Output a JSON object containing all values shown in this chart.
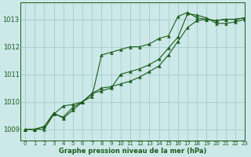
{
  "title": "Graphe pression niveau de la mer (hPa)",
  "bg_color": "#cce8e8",
  "line_color": "#1a5c1a",
  "grid_color": "#9cc8c8",
  "xlim": [
    -0.5,
    23
  ],
  "ylim": [
    1008.6,
    1013.6
  ],
  "yticks": [
    1009,
    1010,
    1011,
    1012,
    1013
  ],
  "xticks": [
    0,
    1,
    2,
    3,
    4,
    5,
    6,
    7,
    8,
    9,
    10,
    11,
    12,
    13,
    14,
    15,
    16,
    17,
    18,
    19,
    20,
    21,
    22,
    23
  ],
  "series": [
    [
      1009.0,
      1009.0,
      1009.1,
      1009.6,
      1009.4,
      1009.7,
      1010.0,
      1010.2,
      1011.7,
      1011.8,
      1011.9,
      1012.0,
      1012.0,
      1012.1,
      1012.3,
      1012.4,
      1013.1,
      1013.25,
      1013.05,
      1013.0,
      1012.95,
      1013.0,
      1013.0,
      1013.05
    ],
    [
      1009.0,
      1009.0,
      1009.1,
      1009.55,
      1009.85,
      1009.9,
      1010.0,
      1010.3,
      1010.4,
      1010.5,
      1011.0,
      1011.1,
      1011.2,
      1011.35,
      1011.55,
      1011.95,
      1012.35,
      1013.2,
      1013.15,
      1013.05,
      1012.85,
      1012.85,
      1012.9,
      1013.0
    ],
    [
      1009.0,
      1009.0,
      1009.0,
      1009.55,
      1009.45,
      1009.8,
      1010.0,
      1010.3,
      1010.5,
      1010.55,
      1010.65,
      1010.75,
      1010.9,
      1011.1,
      1011.3,
      1011.7,
      1012.2,
      1012.7,
      1012.95,
      1013.0,
      1012.95,
      1013.0,
      1013.0,
      1013.05
    ]
  ]
}
